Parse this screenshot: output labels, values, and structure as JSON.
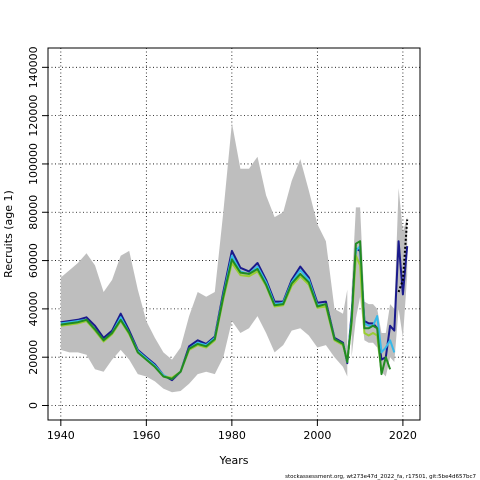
{
  "chart_data": {
    "type": "line",
    "title": "",
    "xlabel": "Years",
    "ylabel": "Recruits (age 1)",
    "footer": "stockassessment.org, wt273e47d_2022_fa, r17501, git:5be4d657bc7",
    "xlim": [
      1937,
      2024
    ],
    "ylim": [
      -6000,
      148000
    ],
    "xticks": [
      "1940",
      "1960",
      "1980",
      "2000",
      "2020"
    ],
    "yticks": [
      "0",
      "20000",
      "40000",
      "60000",
      "80000",
      "100000",
      "120000",
      "140000"
    ],
    "grid": true,
    "band_color": "#bebebe",
    "ci_band": {
      "x": [
        1940,
        1942,
        1944,
        1946,
        1948,
        1950,
        1952,
        1954,
        1956,
        1958,
        1960,
        1962,
        1964,
        1966,
        1968,
        1970,
        1972,
        1974,
        1976,
        1978,
        1980,
        1982,
        1984,
        1986,
        1988,
        1990,
        1992,
        1994,
        1996,
        1998,
        2000,
        2002,
        2004,
        2006,
        2007
      ],
      "lower": [
        23000,
        22000,
        22000,
        21000,
        15000,
        14000,
        19000,
        23000,
        19000,
        13000,
        12000,
        10000,
        7000,
        5500,
        6000,
        9000,
        13000,
        14000,
        13000,
        20000,
        35000,
        30000,
        32000,
        37000,
        30000,
        22000,
        25000,
        31000,
        32000,
        29000,
        24000,
        25000,
        20000,
        16000,
        12000
      ],
      "upper": [
        53000,
        56000,
        59000,
        63000,
        58000,
        47000,
        52000,
        62000,
        64000,
        48000,
        35000,
        28000,
        22000,
        19000,
        24000,
        37000,
        47000,
        45000,
        47000,
        80000,
        117000,
        98000,
        98000,
        103000,
        87000,
        78000,
        80000,
        93000,
        102000,
        89000,
        75000,
        68000,
        40000,
        38000,
        48000
      ]
    },
    "ci_band_late": {
      "x": [
        2008,
        2009,
        2010,
        2011,
        2012,
        2013,
        2014,
        2015,
        2016,
        2017,
        2018,
        2019,
        2020,
        2021
      ],
      "lower": [
        20000,
        36000,
        45000,
        27000,
        26000,
        26000,
        24000,
        14000,
        12000,
        20000,
        18000,
        40000,
        28000,
        54000
      ],
      "upper": [
        48000,
        82000,
        82000,
        43000,
        42000,
        42000,
        40000,
        30000,
        30000,
        42000,
        40000,
        90000,
        72000,
        78000
      ]
    },
    "series": [
      {
        "color": "#1a1a8c",
        "x": [
          1940,
          1942,
          1944,
          1946,
          1948,
          1950,
          1952,
          1954,
          1956,
          1958,
          1960,
          1962,
          1964,
          1966,
          1968,
          1970,
          1972,
          1974,
          1976,
          1978,
          1980,
          1982,
          1984,
          1986,
          1988,
          1990,
          1992,
          1994,
          1996,
          1998,
          2000,
          2002,
          2004,
          2006,
          2007,
          2008,
          2009,
          2010,
          2011,
          2012,
          2013,
          2014,
          2015,
          2016,
          2017,
          2018,
          2019,
          2020,
          2021
        ],
        "values": [
          34500,
          35000,
          35500,
          36500,
          33000,
          28000,
          31000,
          38000,
          31000,
          23000,
          20000,
          17000,
          12500,
          10500,
          14000,
          24500,
          27000,
          25500,
          28500,
          47000,
          64000,
          57000,
          55500,
          59000,
          52000,
          43000,
          43000,
          52000,
          57500,
          53000,
          42500,
          43000,
          28000,
          26000,
          17500,
          38000,
          65000,
          64000,
          35000,
          34000,
          34000,
          32000,
          19000,
          20000,
          33000,
          31000,
          68000,
          46000,
          66000
        ]
      },
      {
        "color": "#36b9ea",
        "x": [
          1940,
          1942,
          1944,
          1946,
          1948,
          1950,
          1952,
          1954,
          1956,
          1958,
          1960,
          1962,
          1964,
          1966,
          1968,
          1970,
          1972,
          1974,
          1976,
          1978,
          1980,
          1982,
          1984,
          1986,
          1988,
          1990,
          1992,
          1994,
          1996,
          1998,
          2000,
          2002,
          2004,
          2006,
          2007,
          2008,
          2009,
          2010,
          2011,
          2012,
          2013,
          2014,
          2015,
          2016,
          2017,
          2018
        ],
        "values": [
          34000,
          34500,
          35000,
          35500,
          31500,
          27000,
          30000,
          36500,
          30000,
          22500,
          19500,
          16500,
          12500,
          11000,
          14000,
          23500,
          26000,
          25000,
          28000,
          45500,
          62000,
          55500,
          54500,
          57500,
          51000,
          42000,
          42500,
          51000,
          56000,
          52000,
          41500,
          42000,
          27500,
          25500,
          18000,
          36000,
          64000,
          66000,
          34000,
          33000,
          33000,
          37000,
          22000,
          24000,
          27000,
          22000
        ]
      },
      {
        "color": "#9acd32",
        "x": [
          1940,
          1942,
          1944,
          1946,
          1948,
          1950,
          1952,
          1954,
          1956,
          1958,
          1960,
          1962,
          1964,
          1966,
          1968,
          1970,
          1972,
          1974,
          1976,
          1978,
          1980,
          1982,
          1984,
          1986,
          1988,
          1990,
          1992,
          1994,
          1996,
          1998,
          2000,
          2002,
          2004,
          2006,
          2007,
          2008,
          2009,
          2010,
          2011,
          2012,
          2013,
          2014,
          2015
        ],
        "values": [
          33000,
          33500,
          34000,
          35000,
          31000,
          26500,
          29500,
          35000,
          29500,
          22000,
          19000,
          16000,
          12000,
          11500,
          14000,
          23000,
          25000,
          24000,
          27000,
          44000,
          59000,
          54000,
          53500,
          55500,
          49500,
          41000,
          41500,
          49500,
          53500,
          50000,
          40500,
          41000,
          27000,
          25000,
          18500,
          34000,
          62000,
          58000,
          30000,
          29000,
          30000,
          29000,
          14000
        ]
      },
      {
        "color": "#228b22",
        "x": [
          1940,
          1942,
          1944,
          1946,
          1948,
          1950,
          1952,
          1954,
          1956,
          1958,
          1960,
          1962,
          1964,
          1966,
          1968,
          1970,
          1972,
          1974,
          1976,
          1978,
          1980,
          1982,
          1984,
          1986,
          1988,
          1990,
          1992,
          1994,
          1996,
          1998,
          2000,
          2002,
          2004,
          2006,
          2007,
          2008,
          2009,
          2010,
          2011,
          2012,
          2013,
          2014,
          2015,
          2016,
          2017
        ],
        "values": [
          33500,
          34000,
          34500,
          35500,
          31500,
          27000,
          30000,
          35500,
          30000,
          22000,
          19000,
          16000,
          12000,
          11000,
          14000,
          23500,
          25500,
          24500,
          27500,
          45000,
          60500,
          55000,
          54500,
          56500,
          50000,
          41500,
          42000,
          50500,
          54500,
          51000,
          41000,
          42000,
          27500,
          25500,
          18000,
          35000,
          67000,
          68000,
          32000,
          32000,
          33000,
          32000,
          13000,
          20000,
          15000
        ]
      }
    ],
    "projection": {
      "style": "dotted",
      "color": "#000000",
      "x": [
        2019,
        2020,
        2021
      ],
      "values": [
        47000,
        52000,
        77000
      ]
    }
  }
}
